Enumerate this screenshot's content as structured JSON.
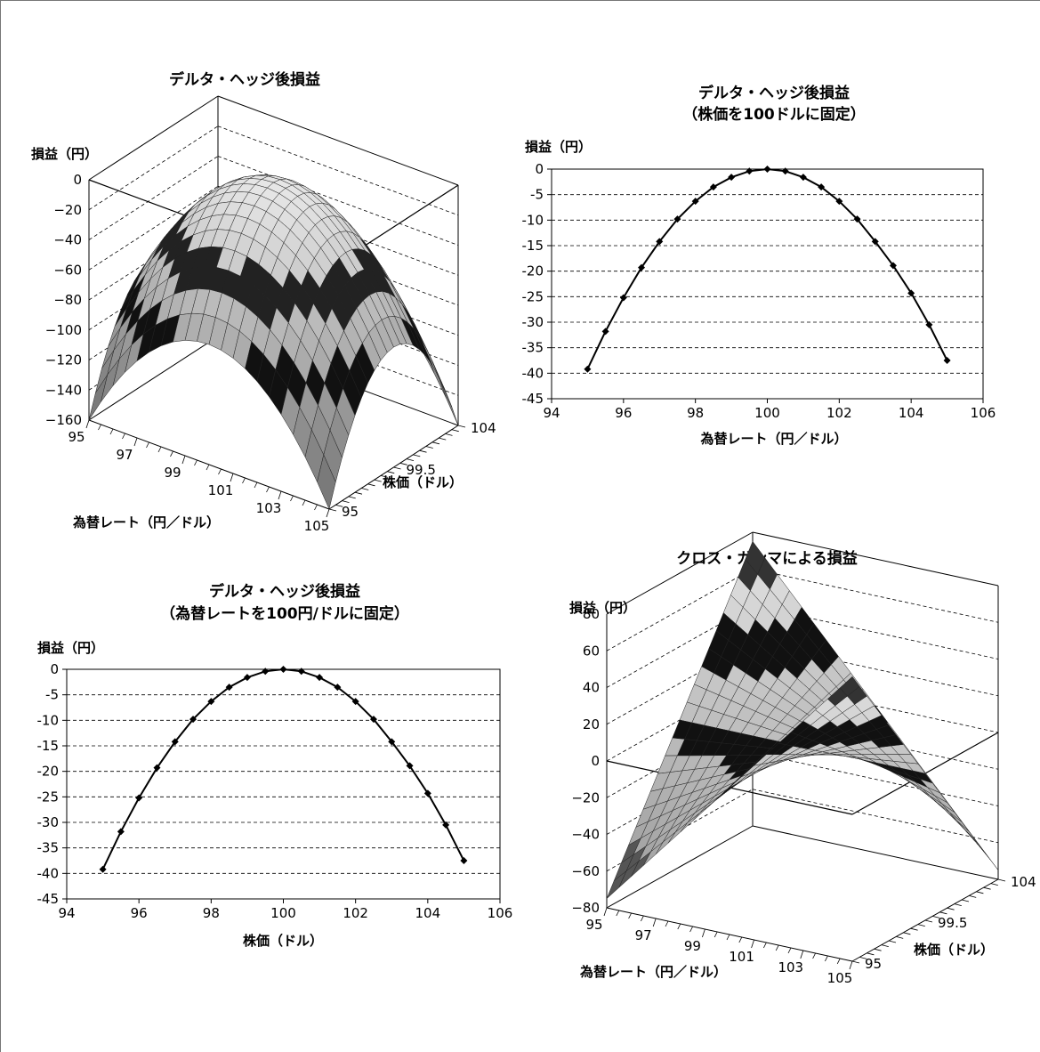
{
  "chart_data": [
    {
      "type": "surface3d",
      "title": "デルタ・ヘッジ後損益",
      "zlabel": "損益（円）",
      "xlabel": "為替レート（円／ドル）",
      "ylabel": "株価（ドル）",
      "z_ticks": [
        "0",
        "−20",
        "−40",
        "−60",
        "−80",
        "−100",
        "−120",
        "−140",
        "−160"
      ],
      "x_ticks": [
        "95",
        "97",
        "99",
        "101",
        "103",
        "105"
      ],
      "y_ticks": [
        "95",
        "99.5",
        "104"
      ],
      "zlim": [
        -160,
        0
      ],
      "x_range": [
        95,
        105
      ],
      "y_range": [
        95,
        104
      ],
      "peak": {
        "x": 100,
        "y": 100,
        "z": 0
      },
      "corner_values": {
        "x95_y95": -160,
        "x105_y104": -150
      }
    },
    {
      "type": "line",
      "title_lines": [
        "デルタ・ヘッジ後損益",
        "（株価を100ドルに固定）"
      ],
      "xlabel": "為替レート（円／ドル）",
      "ylabel": "損益（円）",
      "xlim": [
        94,
        106
      ],
      "ylim": [
        -45,
        0
      ],
      "x_ticks": [
        94,
        96,
        98,
        100,
        102,
        104,
        106
      ],
      "y_ticks": [
        0,
        -5,
        -10,
        -15,
        -20,
        -25,
        -30,
        -35,
        -40,
        -45
      ],
      "grid": "dashed-horizontal",
      "x": [
        95,
        95.5,
        96,
        96.5,
        97,
        97.5,
        98,
        98.5,
        99,
        99.5,
        100,
        100.5,
        101,
        101.5,
        102,
        102.5,
        103,
        103.5,
        104,
        104.5,
        105
      ],
      "values": [
        -39.2,
        -31.8,
        -25.2,
        -19.3,
        -14.2,
        -9.8,
        -6.3,
        -3.5,
        -1.6,
        -0.4,
        0,
        -0.4,
        -1.6,
        -3.5,
        -6.3,
        -9.8,
        -14.2,
        -18.9,
        -24.3,
        -30.5,
        -37.5
      ]
    },
    {
      "type": "line",
      "title_lines": [
        "デルタ・ヘッジ後損益",
        "（為替レートを100円/ドルに固定）"
      ],
      "xlabel": "株価（ドル）",
      "ylabel": "損益（円）",
      "xlim": [
        94,
        106
      ],
      "ylim": [
        -45,
        0
      ],
      "x_ticks": [
        94,
        96,
        98,
        100,
        102,
        104,
        106
      ],
      "y_ticks": [
        0,
        -5,
        -10,
        -15,
        -20,
        -25,
        -30,
        -35,
        -40,
        -45
      ],
      "grid": "dashed-horizontal",
      "x": [
        95,
        95.5,
        96,
        96.5,
        97,
        97.5,
        98,
        98.5,
        99,
        99.5,
        100,
        100.5,
        101,
        101.5,
        102,
        102.5,
        103,
        103.5,
        104,
        104.5,
        105
      ],
      "values": [
        -39.2,
        -31.8,
        -25.2,
        -19.3,
        -14.2,
        -9.8,
        -6.3,
        -3.5,
        -1.6,
        -0.4,
        0,
        -0.4,
        -1.6,
        -3.5,
        -6.3,
        -9.8,
        -14.2,
        -18.9,
        -24.3,
        -30.5,
        -37.5
      ]
    },
    {
      "type": "surface3d",
      "title": "クロス・ガンマによる損益",
      "zlabel": "損益（円）",
      "xlabel": "為替レート（円／ドル）",
      "ylabel": "株価（ドル）",
      "z_ticks": [
        "80",
        "60",
        "40",
        "20",
        "0",
        "−20",
        "−40",
        "−60",
        "−80"
      ],
      "x_ticks": [
        "95",
        "97",
        "99",
        "101",
        "103",
        "105"
      ],
      "y_ticks": [
        "95",
        "99.5",
        "104"
      ],
      "zlim": [
        -80,
        80
      ],
      "x_range": [
        95,
        105
      ],
      "y_range": [
        95,
        104
      ]
    }
  ]
}
